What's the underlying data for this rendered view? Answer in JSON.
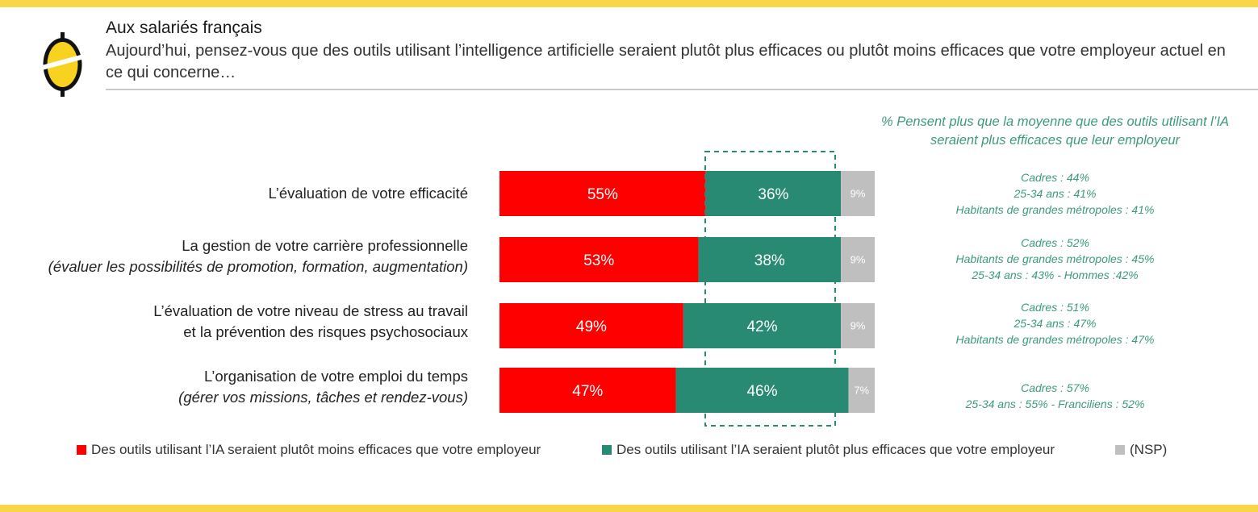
{
  "colors": {
    "band": "#f9d648",
    "moins": "#ff0000",
    "plus": "#288a72",
    "nsp": "#bfbfbf",
    "annot": "#3c9a7a",
    "logo_yellow": "#f7d21e",
    "logo_black": "#111111"
  },
  "header": {
    "audience": "Aux salariés français",
    "question": "Aujourd’hui, pensez-vous que des outils utilisant l’intelligence artificielle seraient plutôt plus efficaces ou plutôt moins efficaces que votre employeur actuel en ce qui concerne…"
  },
  "annotation_header": "% Pensent plus que la moyenne que des outils utilisant l’IA seraient plus efficaces que leur employeur",
  "rows": [
    {
      "label_1": "L’évaluation de votre efficacité",
      "label_2": "",
      "label_2_italic": false,
      "notes": [
        "Cadres : 44%",
        "25-34 ans : 41%",
        "Habitants de grandes métropoles : 41%"
      ]
    },
    {
      "label_1": "La gestion de votre carrière professionnelle",
      "label_2": "(évaluer les possibilités de promotion, formation, augmentation)",
      "label_2_italic": true,
      "notes": [
        "Cadres : 52%",
        "Habitants de grandes métropoles : 45%",
        "25-34 ans : 43% - Hommes :42%"
      ]
    },
    {
      "label_1": "L’évaluation de votre niveau de stress au travail",
      "label_2": "et la prévention des risques psychosociaux",
      "label_2_italic": false,
      "notes": [
        "Cadres : 51%",
        "25-34 ans : 47%",
        "Habitants de grandes métropoles : 47%"
      ]
    },
    {
      "label_1": "L’organisation de votre emploi du temps",
      "label_2": "(gérer vos missions, tâches et rendez-vous)",
      "label_2_italic": true,
      "notes": [
        "Cadres : 57%",
        "25-34 ans : 55% - Franciliens : 52%"
      ]
    }
  ],
  "chart_data": {
    "type": "bar",
    "orientation": "horizontal",
    "stacked": true,
    "unit": "%",
    "xlim": [
      0,
      100
    ],
    "grid": false,
    "highlight": "dashed box around the second series",
    "categories": [
      "L’évaluation de votre efficacité",
      "La gestion de votre carrière professionnelle (évaluer les possibilités de promotion, formation, augmentation)",
      "L’évaluation de votre niveau de stress au travail et la prévention des risques psychosociaux",
      "L’organisation de votre emploi du temps (gérer vos missions, tâches et rendez-vous)"
    ],
    "series": [
      {
        "name": "Des outils utilisant l’IA seraient plutôt moins efficaces que votre employeur",
        "values": [
          55,
          53,
          49,
          47
        ],
        "labels": [
          "55%",
          "53%",
          "49%",
          "47%"
        ]
      },
      {
        "name": "Des outils utilisant l’IA seraient plutôt plus efficaces que votre employeur",
        "values": [
          36,
          38,
          42,
          46
        ],
        "labels": [
          "36%",
          "38%",
          "42%",
          "46%"
        ]
      },
      {
        "name": "(NSP)",
        "values": [
          9,
          9,
          9,
          7
        ],
        "labels": [
          "9%",
          "9%",
          "9%",
          "7%"
        ]
      }
    ],
    "legend_position": "bottom"
  }
}
